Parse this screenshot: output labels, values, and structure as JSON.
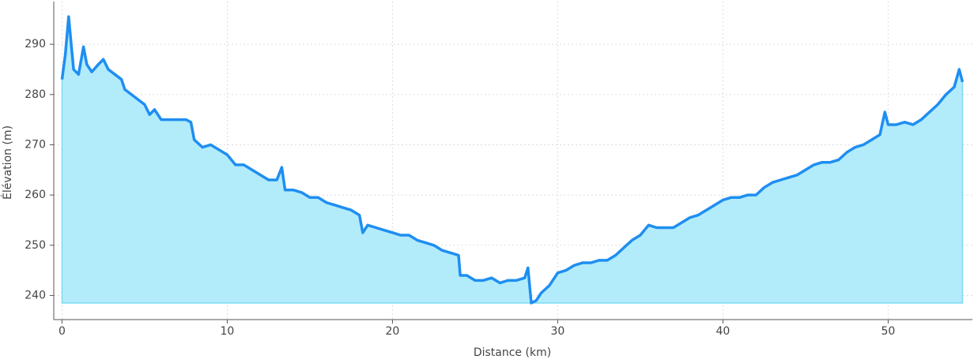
{
  "chart_data": {
    "type": "area",
    "x_label": "Distance (km)",
    "y_label": "Élévation (m)",
    "color": "#1f8ef1",
    "fill_color": "#b2ecfb",
    "edge_color": "#7fdbef",
    "grid": true,
    "xlim": [
      -0.5,
      55.1
    ],
    "ylim": [
      235.2,
      298.5
    ],
    "xticks": [
      0,
      10,
      20,
      30,
      40,
      50
    ],
    "yticks": [
      240,
      250,
      260,
      270,
      280,
      290
    ],
    "x": [
      0,
      0.2,
      0.4,
      0.5,
      0.7,
      1.0,
      1.3,
      1.5,
      1.8,
      2.2,
      2.5,
      2.8,
      3.2,
      3.6,
      3.8,
      4.2,
      4.6,
      5.0,
      5.3,
      5.6,
      6.0,
      6.5,
      7.0,
      7.5,
      7.8,
      8.0,
      8.5,
      9.0,
      9.5,
      10.0,
      10.5,
      11.0,
      11.5,
      12.0,
      12.5,
      13.0,
      13.3,
      13.5,
      14.0,
      14.5,
      15.0,
      15.5,
      16.0,
      16.5,
      17.0,
      17.5,
      18.0,
      18.2,
      18.5,
      19.0,
      19.5,
      20.0,
      20.5,
      21.0,
      21.5,
      22.0,
      22.5,
      23.0,
      23.5,
      24.0,
      24.1,
      24.5,
      25.0,
      25.5,
      26.0,
      26.5,
      27.0,
      27.5,
      28.0,
      28.2,
      28.4,
      28.7,
      29.0,
      29.5,
      30.0,
      30.5,
      31.0,
      31.5,
      32.0,
      32.5,
      33.0,
      33.5,
      34.0,
      34.5,
      35.0,
      35.5,
      36.0,
      36.5,
      37.0,
      37.5,
      38.0,
      38.5,
      39.0,
      39.5,
      40.0,
      40.5,
      41.0,
      41.5,
      42.0,
      42.5,
      43.0,
      43.5,
      44.0,
      44.5,
      45.0,
      45.5,
      46.0,
      46.5,
      47.0,
      47.5,
      48.0,
      48.5,
      49.0,
      49.5,
      49.8,
      50.0,
      50.5,
      51.0,
      51.5,
      52.0,
      52.5,
      53.0,
      53.5,
      54.0,
      54.3,
      54.5
    ],
    "values": [
      283,
      288,
      295.5,
      292,
      285,
      284,
      289.5,
      286,
      284.5,
      286,
      287,
      285,
      284,
      283,
      281,
      280,
      279,
      278,
      276,
      277,
      275,
      275,
      275,
      275,
      274.5,
      271,
      269.5,
      270,
      269,
      268,
      266,
      266,
      265,
      264,
      263,
      263,
      265.5,
      261,
      261,
      260.5,
      259.5,
      259.5,
      258.5,
      258,
      257.5,
      257,
      256,
      252.5,
      254,
      253.5,
      253,
      252.5,
      252,
      252,
      251,
      250.5,
      250,
      249,
      248.5,
      248,
      244,
      244,
      243,
      243,
      243.5,
      242.5,
      243,
      243,
      243.5,
      245.5,
      238.5,
      239,
      240.5,
      242,
      244.5,
      245,
      246,
      246.5,
      246.5,
      247,
      247,
      248,
      249.5,
      251,
      252,
      254,
      253.5,
      253.5,
      253.5,
      254.5,
      255.5,
      256,
      257,
      258,
      259,
      259.5,
      259.5,
      260,
      260,
      261.5,
      262.5,
      263,
      263.5,
      264,
      265,
      266,
      266.5,
      266.5,
      267,
      268.5,
      269.5,
      270,
      271,
      272,
      276.5,
      274,
      274,
      274.5,
      274,
      275,
      276.5,
      278,
      280,
      281.5,
      285,
      282.5
    ]
  }
}
